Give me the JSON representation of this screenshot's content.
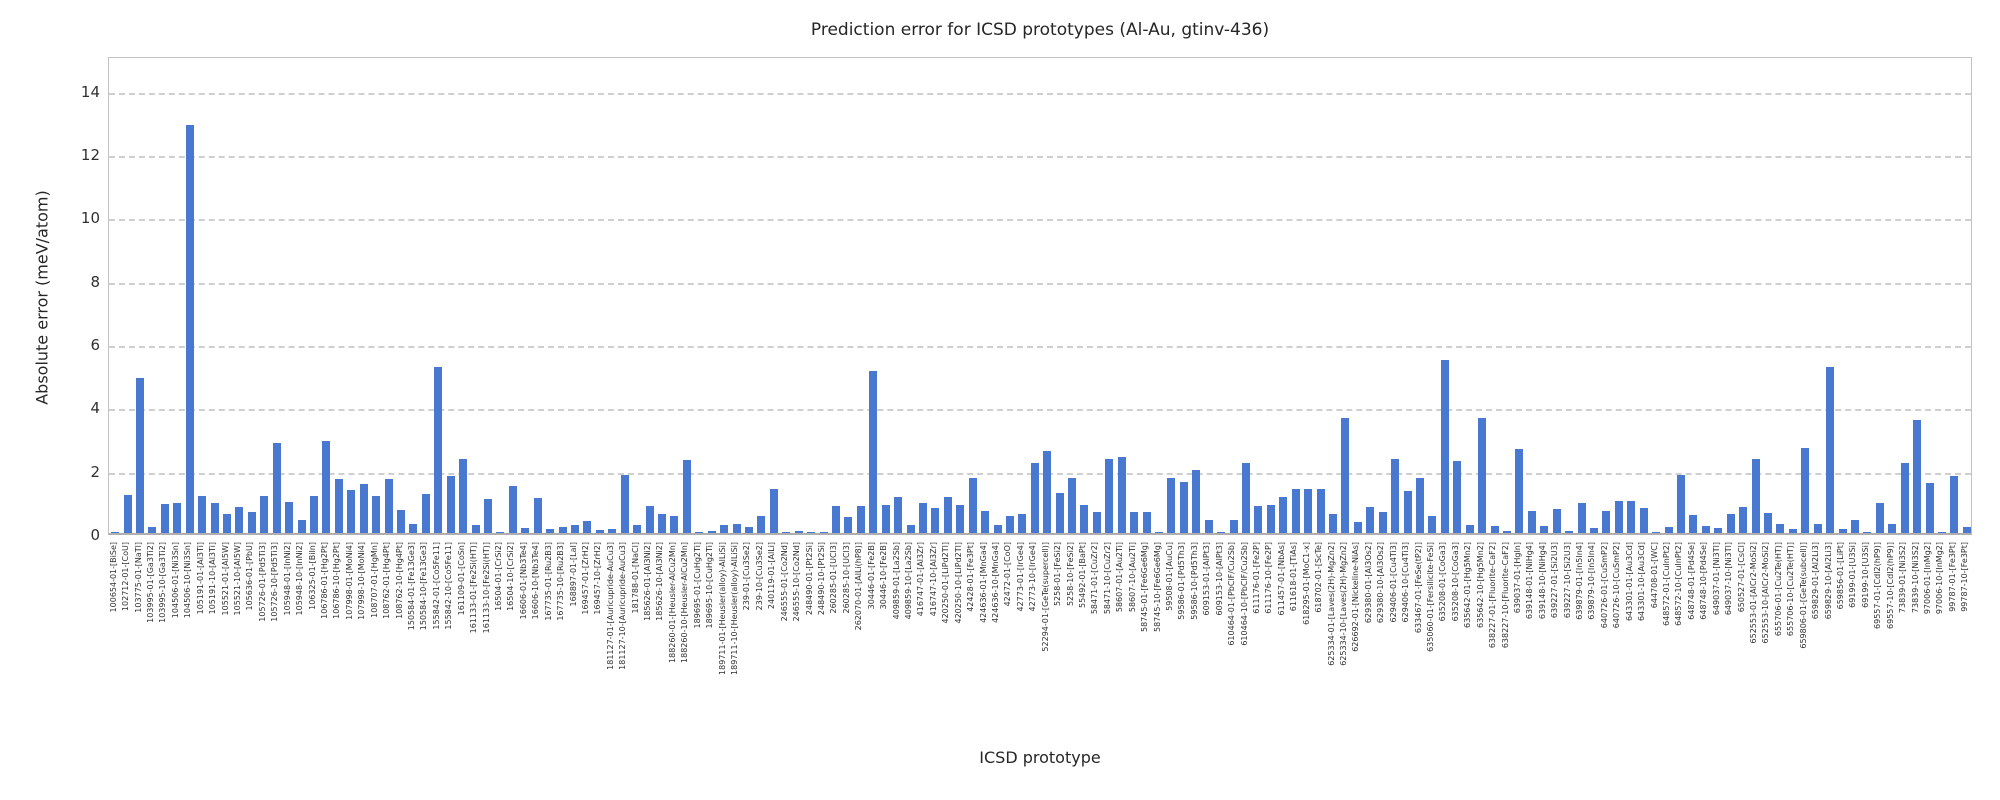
{
  "chart_data": {
    "type": "bar",
    "title": "Prediction error for ICSD prototypes (Al-Au, gtinv-436)",
    "xlabel": "ICSD prototype",
    "ylabel": "Absolute error (meV/atom)",
    "yticks": [
      0,
      2,
      4,
      6,
      8,
      10,
      12,
      14
    ],
    "ylim": [
      0,
      15.1
    ],
    "grid": true,
    "grid_style": "dashed",
    "legend_position": "none",
    "bar_color": "#4878d0",
    "categories": [
      "100654-01-[BiSe]",
      "102712-01-[CoU]",
      "103775-01-[NaTl]",
      "103995-01-[Ga3Ti2]",
      "103995-10-[Ga3Ti2]",
      "104506-01-[Ni3Sn]",
      "104506-10-[Ni3Sn]",
      "105191-01-[Al3Ti]",
      "105191-10-[Al3Ti]",
      "105521-01-[Al5W]",
      "105521-10-[Al5W]",
      "105636-01-[PbU]",
      "105726-01-[Pd5Ti3]",
      "105726-10-[Pd5Ti3]",
      "105948-01-[InNi2]",
      "105948-10-[InNi2]",
      "106325-01-[BiIn]",
      "106786-01-[Hg2Pt]",
      "106786-10-[Hg2Pt]",
      "107998-01-[MoNi4]",
      "107998-10-[MoNi4]",
      "108707-01-[HgMn]",
      "108762-01-[Hg4Pt]",
      "108762-10-[Hg4Pt]",
      "150584-01-[Fe13Ge3]",
      "150584-10-[Fe13Ge3]",
      "155842-01-[Co5Fe11]",
      "155842-10-[Co5Fe11]",
      "161109-01-[CoSn]",
      "161133-01-[Fe2Si(HT)]",
      "161133-10-[Fe2Si(HT)]",
      "16504-01-[CrSi2]",
      "16504-10-[CrSi2]",
      "16606-01-[Nb3Te4]",
      "16606-10-[Nb3Te4]",
      "167735-01-[Ru2B3]",
      "167735-10-[Ru2B3]",
      "168897-01-[LaI]",
      "169457-01-[ZrH2]",
      "169457-10-[ZrH2]",
      "181127-01-[Auricupride-AuCu3]",
      "181127-10-[Auricupride-AuCu3]",
      "181788-01-[NaCl]",
      "185626-01-[Al3Ni2]",
      "185626-10-[Al3Ni2]",
      "188260-01-[Heusler-AlCu2Mn]",
      "188260-10-[Heusler-AlCu2Mn]",
      "189695-01-[CuHg2Ti]",
      "189695-10-[CuHg2Ti]",
      "189711-01-[Heusler(alloy)-AlLiSi]",
      "189711-10-[Heusler(alloy)-AlLiSi]",
      "239-01-[Cu3Se2]",
      "239-10-[Cu3Se2]",
      "240119-01-[AlLi]",
      "246555-01-[Co2Nd]",
      "246555-10-[Co2Nd]",
      "248490-01-[Pt2Si]",
      "248490-10-[Pt2Si]",
      "260285-01-[UCl3]",
      "260285-10-[UCl3]",
      "262070-01-[AlLi(hP8)]",
      "30446-01-[Fe2B]",
      "30446-10-[Fe2B]",
      "409859-01-[La2Sb]",
      "409859-10-[La2Sb]",
      "416747-01-[Al3Zr]",
      "416747-10-[Al3Zr]",
      "420250-01-[LiPd2Tl]",
      "420250-10-[LiPd2Tl]",
      "42428-01-[Fe3Pt]",
      "424636-01-[MnGa4]",
      "424636-10-[MnGa4]",
      "42472-01-[CoO]",
      "42773-01-[IrGe4]",
      "42773-10-[IrGe4]",
      "52294-01-[GeTe(supercell)]",
      "5258-01-[FeSi2]",
      "5258-10-[FeSi2]",
      "55492-01-[BaPt]",
      "58471-01-[CuZr2]",
      "58471-10-[CuZr2]",
      "58607-01-[Au2Ti]",
      "58607-10-[Au2Ti]",
      "58745-01-[Fe6Ge6Mg]",
      "58745-10-[Fe6Ge6Mg]",
      "59508-01-[AuCu]",
      "59586-01-[Pd5Th3]",
      "59586-10-[Pd5Th3]",
      "609153-01-[AlPt3]",
      "609153-10-[AlPt3]",
      "610464-01-[PbClF/Cu2Sb]",
      "610464-10-[PbClF/Cu2Sb]",
      "611176-01-[Fe2P]",
      "611176-10-[Fe2P]",
      "611457-01-[NbAs]",
      "611618-01-[TiAs]",
      "618295-01-[MoC1-x]",
      "618702-01-[ScTe]",
      "625334-01-[Laves(2H)-MgZn2]",
      "625334-10-[Laves(2H)-MgZn2]",
      "626692-01-[Nickeline-NiAs]",
      "629380-01-[Al3Os2]",
      "629380-10-[Al3Os2]",
      "629406-01-[Cu4Ti3]",
      "629406-10-[Cu4Ti3]",
      "633467-01-[FeSe(tP2)]",
      "635060-01-[Fersilicite-FeSi]",
      "635208-01-[CoGa3]",
      "635208-10-[CoGa3]",
      "635642-01-[Hg5Mn2]",
      "635642-10-[Hg5Mn2]",
      "638227-01-[Fluorite-CaF2]",
      "638227-10-[Fluorite-CaF2]",
      "639037-01-[HgIn]",
      "639148-01-[NiHg4]",
      "639148-10-[NiHg4]",
      "639227-01-[Si2U3]",
      "639227-10-[Si2U3]",
      "639879-01-[In5In4]",
      "639879-10-[In5In4]",
      "640726-01-[CuSmP2]",
      "640726-10-[CuSmP2]",
      "643301-01-[Au3Cd]",
      "643301-10-[Au3Cd]",
      "644708-01-[WC]",
      "648572-01-[CuInPt2]",
      "648572-10-[CuInPt2]",
      "648748-01-[Pd4Se]",
      "648748-10-[Pd4Se]",
      "649037-01-[Ni3Tl]",
      "649037-10-[Ni3Tl]",
      "650527-01-[CsCl]",
      "652553-01-[AlCr2-MoSi2]",
      "652553-10-[AlCr2-MoSi2]",
      "655706-01-[Cu2Te(HT)]",
      "655706-10-[Cu2Te(HT)]",
      "659806-01-[GeTe(subcell)]",
      "659829-01-[Al2Li3]",
      "659829-10-[Al2Li3]",
      "659856-01-[LiPt]",
      "69199-01-[U3Si]",
      "69199-10-[U3Si]",
      "69557-01-[CdI2(hP9)]",
      "69557-10-[CdI2(hP9)]",
      "73839-01-[Ni3S2]",
      "73839-10-[Ni3S2]",
      "97006-01-[InMg2]",
      "97006-10-[InMg2]",
      "99787-01-[Fe3Pt]",
      "99787-10-[Fe3Pt]"
    ],
    "values": [
      0.03,
      1.2,
      4.9,
      0.2,
      0.93,
      0.96,
      12.9,
      1.18,
      0.96,
      0.6,
      0.82,
      0.66,
      1.18,
      2.85,
      0.98,
      0.4,
      1.18,
      2.92,
      1.72,
      1.35,
      1.56,
      1.18,
      1.72,
      0.74,
      0.3,
      1.22,
      5.26,
      1.79,
      2.35,
      0.24,
      1.08,
      0.03,
      1.5,
      0.17,
      1.12,
      0.14,
      0.2,
      0.26,
      0.38,
      0.1,
      0.12,
      1.82,
      0.25,
      0.85,
      0.6,
      0.55,
      2.32,
      0.03,
      0.05,
      0.25,
      0.3,
      0.18,
      0.55,
      1.4,
      0.03,
      0.07,
      0.04,
      0.03,
      0.85,
      0.5,
      0.85,
      5.12,
      0.9,
      1.15,
      0.25,
      0.95,
      0.8,
      1.15,
      0.9,
      1.75,
      0.7,
      0.25,
      0.55,
      0.6,
      2.2,
      2.6,
      1.25,
      1.75,
      0.9,
      0.65,
      2.35,
      2.4,
      0.65,
      0.65,
      0.03,
      1.75,
      1.6,
      2.0,
      0.4,
      0.03,
      0.4,
      2.2,
      0.85,
      0.87,
      1.15,
      1.4,
      1.38,
      1.4,
      0.6,
      3.63,
      0.35,
      0.82,
      0.65,
      2.35,
      1.33,
      1.75,
      0.55,
      5.45,
      2.29,
      0.26,
      3.62,
      0.21,
      0.05,
      2.65,
      0.68,
      0.22,
      0.75,
      0.07,
      0.95,
      0.15,
      0.71,
      1.0,
      1.0,
      0.78,
      0.02,
      0.2,
      1.82,
      0.58,
      0.22,
      0.15,
      0.6,
      0.83,
      2.35,
      0.62,
      0.3,
      0.12,
      2.7,
      0.3,
      5.26,
      0.13,
      0.4,
      0.02,
      0.95,
      0.3,
      2.2,
      3.58,
      1.58,
      0.04,
      1.79,
      0.19
    ]
  }
}
